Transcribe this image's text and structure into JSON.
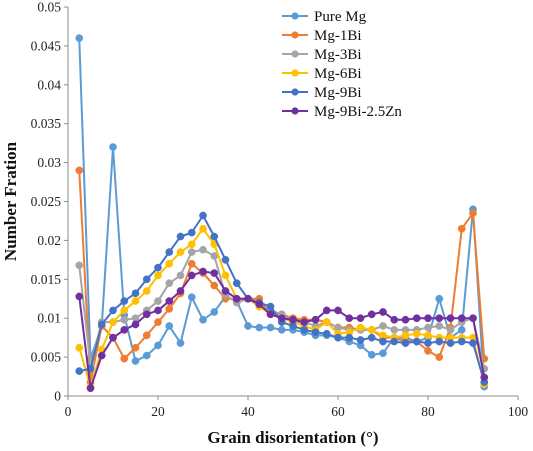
{
  "chart_data": {
    "type": "line",
    "title": "",
    "xlabel": "Grain disorientation (°)",
    "ylabel": "Number Fration",
    "xlim": [
      0,
      100
    ],
    "ylim": [
      0,
      0.05
    ],
    "xticks": [
      "0",
      "20",
      "40",
      "60",
      "80",
      "100"
    ],
    "yticks": [
      "0",
      "0.005",
      "0.01",
      "0.015",
      "0.02",
      "0.025",
      "0.03",
      "0.035",
      "0.04",
      "0.045",
      "0.05"
    ],
    "grid": false,
    "legend_position": "top-right",
    "series": [
      {
        "name": "Pure Mg",
        "color": "#5B9BD5",
        "x": [
          2.5,
          5,
          7.5,
          10,
          12.5,
          15,
          17.5,
          20,
          22.5,
          25,
          27.5,
          30,
          32.5,
          35,
          37.5,
          40,
          42.5,
          45,
          47.5,
          50,
          52.5,
          55,
          57.5,
          60,
          62.5,
          65,
          67.5,
          70,
          72.5,
          75,
          77.5,
          80,
          82.5,
          85,
          87.5,
          90,
          92.5
        ],
        "y": [
          0.046,
          0.0048,
          0.009,
          0.032,
          0.0104,
          0.0045,
          0.0052,
          0.0065,
          0.009,
          0.0068,
          0.0127,
          0.0098,
          0.0108,
          0.0128,
          0.0122,
          0.009,
          0.0088,
          0.0088,
          0.0085,
          0.0085,
          0.0082,
          0.0078,
          0.0078,
          0.0075,
          0.007,
          0.0065,
          0.0053,
          0.0055,
          0.0075,
          0.0075,
          0.007,
          0.0075,
          0.0125,
          0.0075,
          0.0085,
          0.024,
          0.0012
        ]
      },
      {
        "name": "Mg-1Bi",
        "color": "#ED7D31",
        "x": [
          2.5,
          5,
          7.5,
          10,
          12.5,
          15,
          17.5,
          20,
          22.5,
          25,
          27.5,
          30,
          32.5,
          35,
          37.5,
          40,
          42.5,
          45,
          47.5,
          50,
          52.5,
          55,
          57.5,
          60,
          62.5,
          65,
          67.5,
          70,
          72.5,
          75,
          77.5,
          80,
          82.5,
          85,
          87.5,
          90,
          92.5
        ],
        "y": [
          0.029,
          0.0018,
          0.009,
          0.0075,
          0.0048,
          0.0062,
          0.0078,
          0.0095,
          0.0112,
          0.0132,
          0.017,
          0.0158,
          0.0142,
          0.0125,
          0.0125,
          0.0125,
          0.0125,
          0.0105,
          0.0105,
          0.01,
          0.0098,
          0.0098,
          0.0095,
          0.0088,
          0.0088,
          0.0085,
          0.0085,
          0.0075,
          0.0075,
          0.007,
          0.007,
          0.0058,
          0.005,
          0.0088,
          0.0215,
          0.0235,
          0.0048
        ]
      },
      {
        "name": "Mg-3Bi",
        "color": "#A5A5A5",
        "x": [
          2.5,
          5,
          7.5,
          10,
          12.5,
          15,
          17.5,
          20,
          22.5,
          25,
          27.5,
          30,
          32.5,
          35,
          37.5,
          40,
          42.5,
          45,
          47.5,
          50,
          52.5,
          55,
          57.5,
          60,
          62.5,
          65,
          67.5,
          70,
          72.5,
          75,
          77.5,
          80,
          82.5,
          85,
          87.5,
          90,
          92.5
        ],
        "y": [
          0.0168,
          0.004,
          0.0095,
          0.0095,
          0.0098,
          0.01,
          0.011,
          0.0122,
          0.0145,
          0.0155,
          0.0185,
          0.0188,
          0.018,
          0.013,
          0.012,
          0.0125,
          0.0115,
          0.011,
          0.0105,
          0.0095,
          0.0095,
          0.009,
          0.0095,
          0.0088,
          0.0085,
          0.0085,
          0.0085,
          0.009,
          0.0085,
          0.0085,
          0.0085,
          0.0088,
          0.009,
          0.0085,
          0.0095,
          0.01,
          0.0035
        ]
      },
      {
        "name": "Mg-6Bi",
        "color": "#FFC000",
        "x": [
          2.5,
          5,
          7.5,
          10,
          12.5,
          15,
          17.5,
          20,
          22.5,
          25,
          27.5,
          30,
          32.5,
          35,
          37.5,
          40,
          42.5,
          45,
          47.5,
          50,
          52.5,
          55,
          57.5,
          60,
          62.5,
          65,
          67.5,
          70,
          72.5,
          75,
          77.5,
          80,
          82.5,
          85,
          87.5,
          90,
          92.5
        ],
        "y": [
          0.0062,
          0.0012,
          0.006,
          0.0095,
          0.011,
          0.0122,
          0.0135,
          0.0155,
          0.017,
          0.0185,
          0.0195,
          0.0215,
          0.0195,
          0.0155,
          0.0125,
          0.0125,
          0.0115,
          0.0105,
          0.01,
          0.0095,
          0.009,
          0.0085,
          0.0095,
          0.008,
          0.0082,
          0.0088,
          0.0085,
          0.0078,
          0.0075,
          0.0078,
          0.008,
          0.0078,
          0.0075,
          0.0075,
          0.0075,
          0.0075,
          0.0015
        ]
      },
      {
        "name": "Mg-9Bi",
        "color": "#4472C4",
        "x": [
          2.5,
          5,
          7.5,
          10,
          12.5,
          15,
          17.5,
          20,
          22.5,
          25,
          27.5,
          30,
          32.5,
          35,
          37.5,
          40,
          42.5,
          45,
          47.5,
          50,
          52.5,
          55,
          57.5,
          60,
          62.5,
          65,
          67.5,
          70,
          72.5,
          75,
          77.5,
          80,
          82.5,
          85,
          87.5,
          90,
          92.5
        ],
        "y": [
          0.0032,
          0.0035,
          0.0092,
          0.011,
          0.0122,
          0.0132,
          0.015,
          0.0165,
          0.0185,
          0.0205,
          0.021,
          0.0232,
          0.0205,
          0.0175,
          0.0145,
          0.0125,
          0.012,
          0.0115,
          0.0095,
          0.009,
          0.0085,
          0.0082,
          0.008,
          0.0075,
          0.0075,
          0.0072,
          0.0075,
          0.007,
          0.007,
          0.0068,
          0.007,
          0.0068,
          0.007,
          0.0068,
          0.007,
          0.0068,
          0.0018
        ]
      },
      {
        "name": "Mg-9Bi-2.5Zn",
        "color": "#7030A0",
        "x": [
          2.5,
          5,
          7.5,
          10,
          12.5,
          15,
          17.5,
          20,
          22.5,
          25,
          27.5,
          30,
          32.5,
          35,
          37.5,
          40,
          42.5,
          45,
          47.5,
          50,
          52.5,
          55,
          57.5,
          60,
          62.5,
          65,
          67.5,
          70,
          72.5,
          75,
          77.5,
          80,
          82.5,
          85,
          87.5,
          90,
          92.5
        ],
        "y": [
          0.0128,
          0.001,
          0.0052,
          0.0075,
          0.0085,
          0.0092,
          0.0105,
          0.011,
          0.0122,
          0.0135,
          0.0155,
          0.016,
          0.0158,
          0.0135,
          0.0125,
          0.0125,
          0.0118,
          0.0105,
          0.01,
          0.0098,
          0.0095,
          0.0098,
          0.011,
          0.011,
          0.01,
          0.01,
          0.0105,
          0.0108,
          0.0098,
          0.0098,
          0.01,
          0.01,
          0.01,
          0.01,
          0.01,
          0.01,
          0.0024
        ]
      }
    ]
  }
}
